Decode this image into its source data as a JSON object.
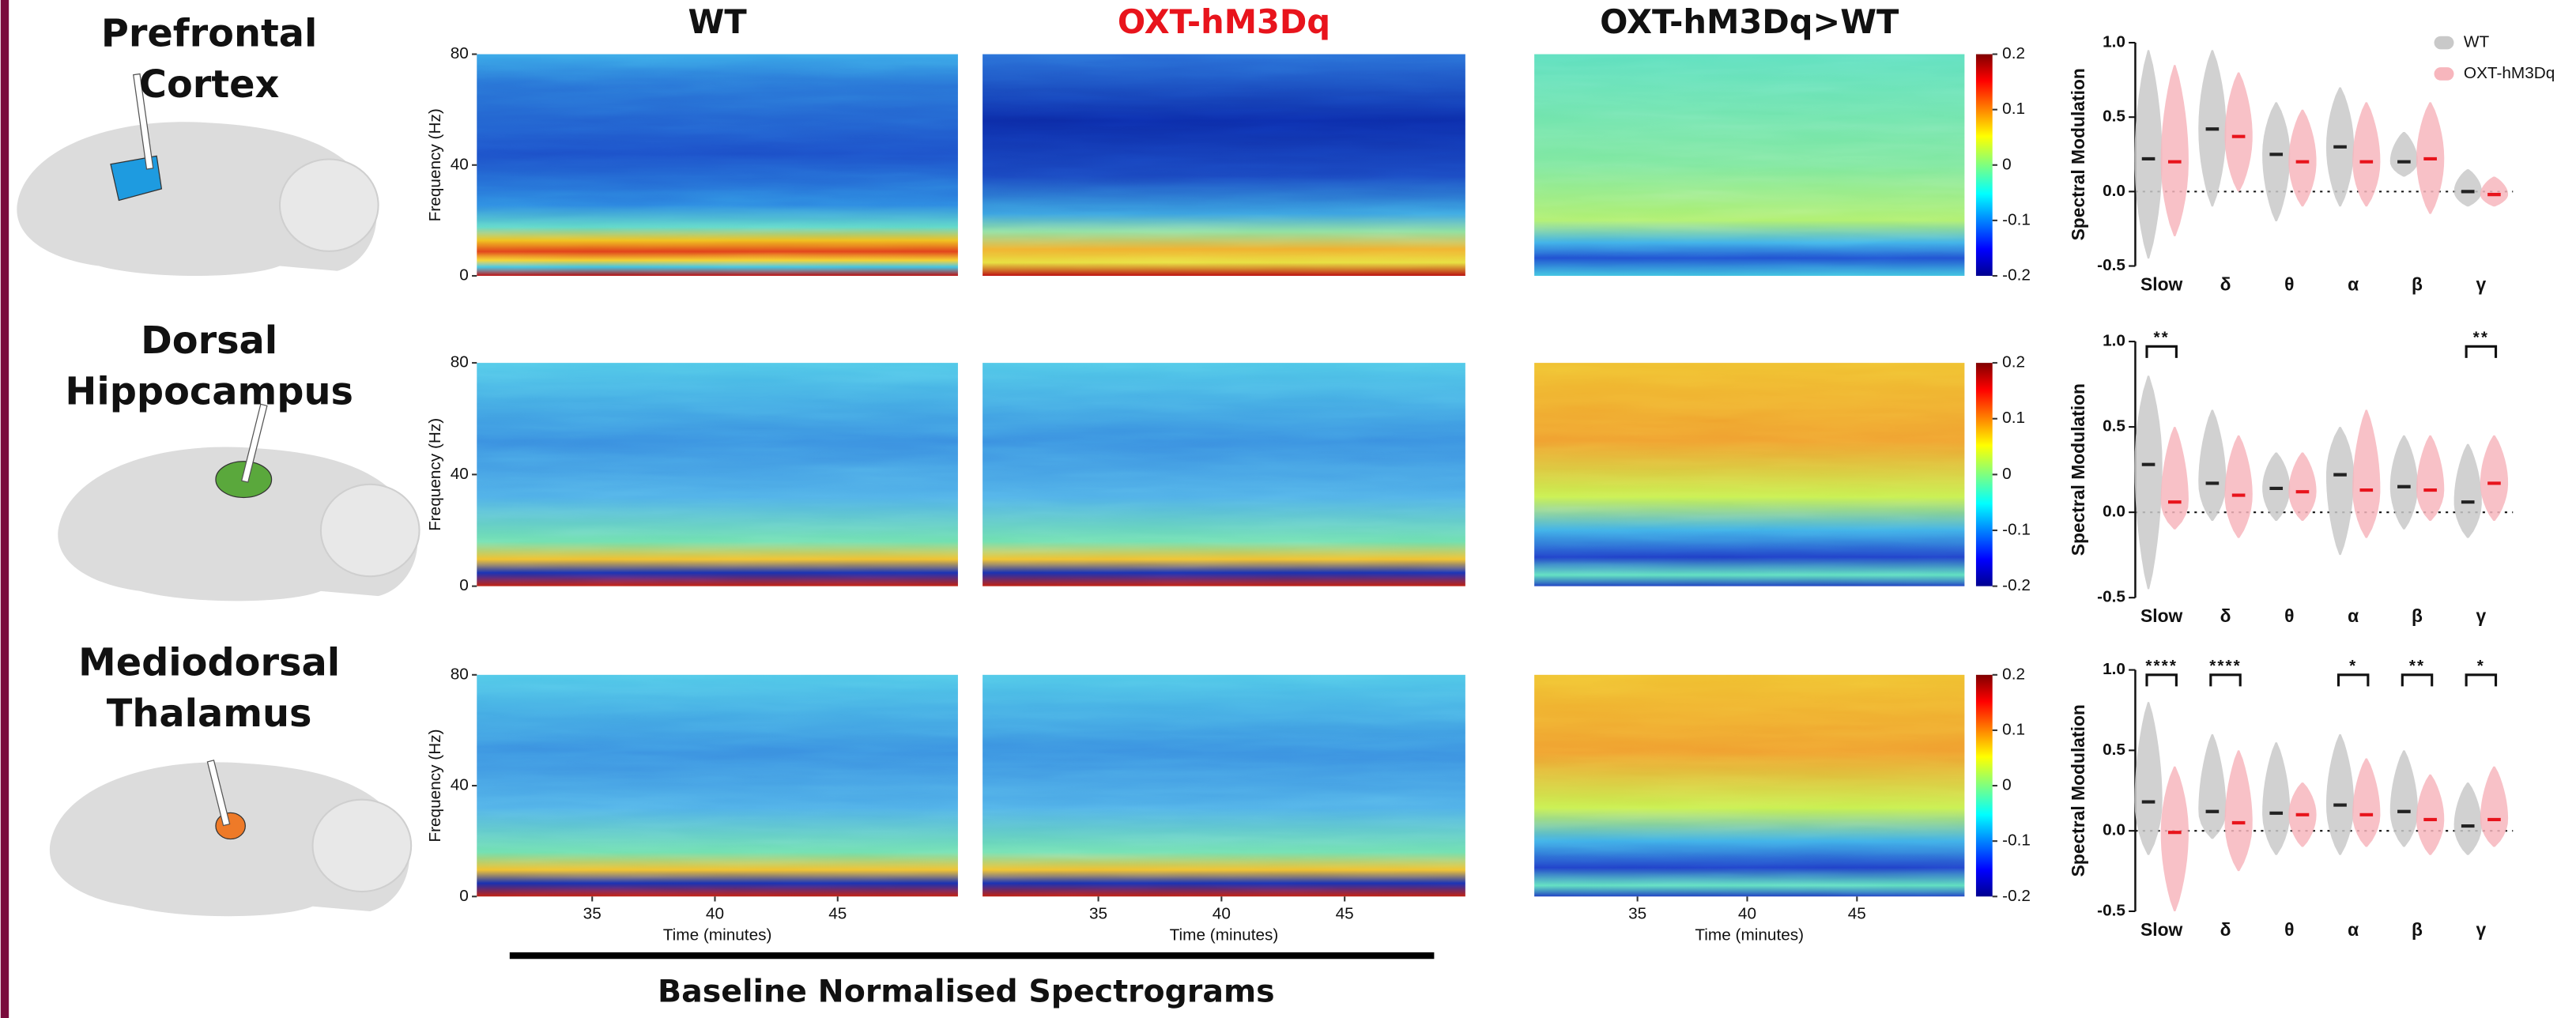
{
  "figure": {
    "row_labels": [
      [
        "Prefrontal",
        "Cortex"
      ],
      [
        "Dorsal",
        "Hippocampus"
      ],
      [
        "Mediodorsal",
        "Thalamus"
      ]
    ],
    "column_titles": [
      "WT",
      "OXT-hM3Dq",
      "OXT-hM3Dq>WT"
    ],
    "caption": "Baseline Normalised Spectrograms"
  },
  "spectrogram": {
    "type": "heatmap",
    "ylabel": "Frequency (Hz)",
    "xlabel": "Time (minutes)",
    "ylim": [
      0,
      80
    ],
    "yticks": [
      0,
      40,
      80
    ],
    "xlim": [
      30.3,
      49.9
    ],
    "xticks": [
      35,
      40,
      45
    ],
    "colorbar": {
      "lim": [
        -0.2,
        0.2
      ],
      "ticks": [
        0.2,
        0.1,
        0,
        -0.1,
        -0.2
      ]
    }
  },
  "chart_data": [
    {
      "type": "violin",
      "ylabel": "Spectral Modulation",
      "categories": [
        "Slow",
        "δ",
        "θ",
        "α",
        "β",
        "γ"
      ],
      "ylim": [
        -0.5,
        1.0
      ],
      "yticks": [
        -0.5,
        {
          "value": 0,
          "label": "0.0"
        },
        0.5,
        {
          "value": 1,
          "label": "1.0"
        }
      ],
      "legend": "upper right",
      "series": [
        {
          "name": "WT",
          "color": "#c9c9c9",
          "values": [
            0.22,
            0.42,
            0.25,
            0.3,
            0.2,
            0.0
          ],
          "mins": [
            -0.45,
            -0.1,
            -0.2,
            -0.1,
            0.1,
            -0.1
          ],
          "maxs": [
            0.95,
            0.95,
            0.6,
            0.7,
            0.4,
            0.15
          ]
        },
        {
          "name": "OXT-hM3Dq",
          "color": "#f7b6bd",
          "values": [
            0.2,
            0.37,
            0.2,
            0.2,
            0.22,
            -0.02
          ],
          "mins": [
            -0.3,
            0.0,
            -0.1,
            -0.1,
            -0.15,
            -0.1
          ],
          "maxs": [
            0.85,
            0.8,
            0.55,
            0.6,
            0.6,
            0.1
          ]
        }
      ],
      "significance": [
        null,
        null,
        null,
        null,
        null,
        null
      ]
    },
    {
      "type": "violin",
      "ylabel": "Spectral Modulation",
      "categories": [
        "Slow",
        "δ",
        "θ",
        "α",
        "β",
        "γ"
      ],
      "ylim": [
        -0.5,
        1.0
      ],
      "yticks": [
        -0.5,
        {
          "value": 0,
          "label": "0.0"
        },
        0.5,
        {
          "value": 1,
          "label": "1.0"
        }
      ],
      "series": [
        {
          "name": "WT",
          "color": "#c9c9c9",
          "values": [
            0.28,
            0.17,
            0.14,
            0.22,
            0.15,
            0.06
          ],
          "mins": [
            -0.45,
            -0.05,
            -0.05,
            -0.25,
            -0.1,
            -0.15
          ],
          "maxs": [
            0.8,
            0.6,
            0.35,
            0.5,
            0.45,
            0.4
          ]
        },
        {
          "name": "OXT-hM3Dq",
          "color": "#f7b6bd",
          "values": [
            0.06,
            0.1,
            0.12,
            0.13,
            0.13,
            0.17
          ],
          "mins": [
            -0.1,
            -0.15,
            -0.05,
            -0.15,
            -0.05,
            -0.05
          ],
          "maxs": [
            0.5,
            0.45,
            0.35,
            0.6,
            0.45,
            0.45
          ]
        }
      ],
      "significance": [
        "**",
        null,
        null,
        null,
        null,
        "**"
      ]
    },
    {
      "type": "violin",
      "ylabel": "Spectral Modulation",
      "categories": [
        "Slow",
        "δ",
        "θ",
        "α",
        "β",
        "γ"
      ],
      "ylim": [
        -0.5,
        1.0
      ],
      "yticks": [
        -0.5,
        {
          "value": 0,
          "label": "0.0"
        },
        0.5,
        {
          "value": 1,
          "label": "1.0"
        }
      ],
      "series": [
        {
          "name": "WT",
          "color": "#c9c9c9",
          "values": [
            0.18,
            0.12,
            0.11,
            0.16,
            0.12,
            0.03
          ],
          "mins": [
            -0.15,
            -0.05,
            -0.15,
            -0.15,
            -0.1,
            -0.15
          ],
          "maxs": [
            0.8,
            0.6,
            0.55,
            0.6,
            0.5,
            0.3
          ]
        },
        {
          "name": "OXT-hM3Dq",
          "color": "#f7b6bd",
          "values": [
            -0.01,
            0.05,
            0.1,
            0.1,
            0.07,
            0.07
          ],
          "mins": [
            -0.5,
            -0.25,
            -0.1,
            -0.1,
            -0.15,
            -0.1
          ],
          "maxs": [
            0.4,
            0.5,
            0.3,
            0.45,
            0.35,
            0.4
          ]
        }
      ],
      "significance": [
        "****",
        "****",
        null,
        "*",
        "**",
        "*"
      ]
    }
  ]
}
